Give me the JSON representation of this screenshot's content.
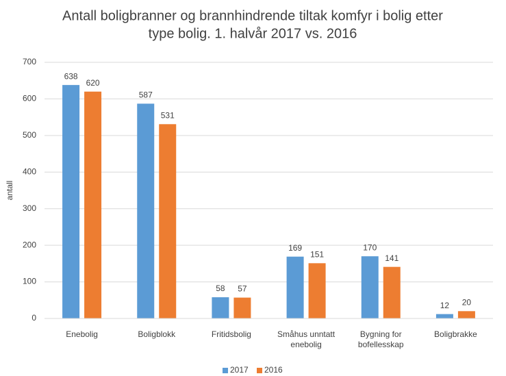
{
  "chart_data": {
    "type": "bar",
    "title": [
      "Antall boligbranner og brannhindrende tiltak komfyr i bolig etter",
      "type bolig. 1. halvår 2017 vs. 2016"
    ],
    "y_label": "antall",
    "categories": [
      "Enebolig",
      "Boligblokk",
      "Fritidsbolig",
      "Småhus unntatt enebolig",
      "Bygning for bofellesskap",
      "Boligbrakke"
    ],
    "series": [
      {
        "name": "2017",
        "color": "#5b9bd5",
        "values": [
          638,
          587,
          58,
          169,
          170,
          12
        ]
      },
      {
        "name": "2016",
        "color": "#ed7d31",
        "values": [
          620,
          531,
          57,
          151,
          141,
          20
        ]
      }
    ],
    "ylim": [
      0,
      700
    ],
    "yticks": [
      0,
      100,
      200,
      300,
      400,
      500,
      600,
      700
    ],
    "grid": true,
    "legend": "bottom"
  }
}
